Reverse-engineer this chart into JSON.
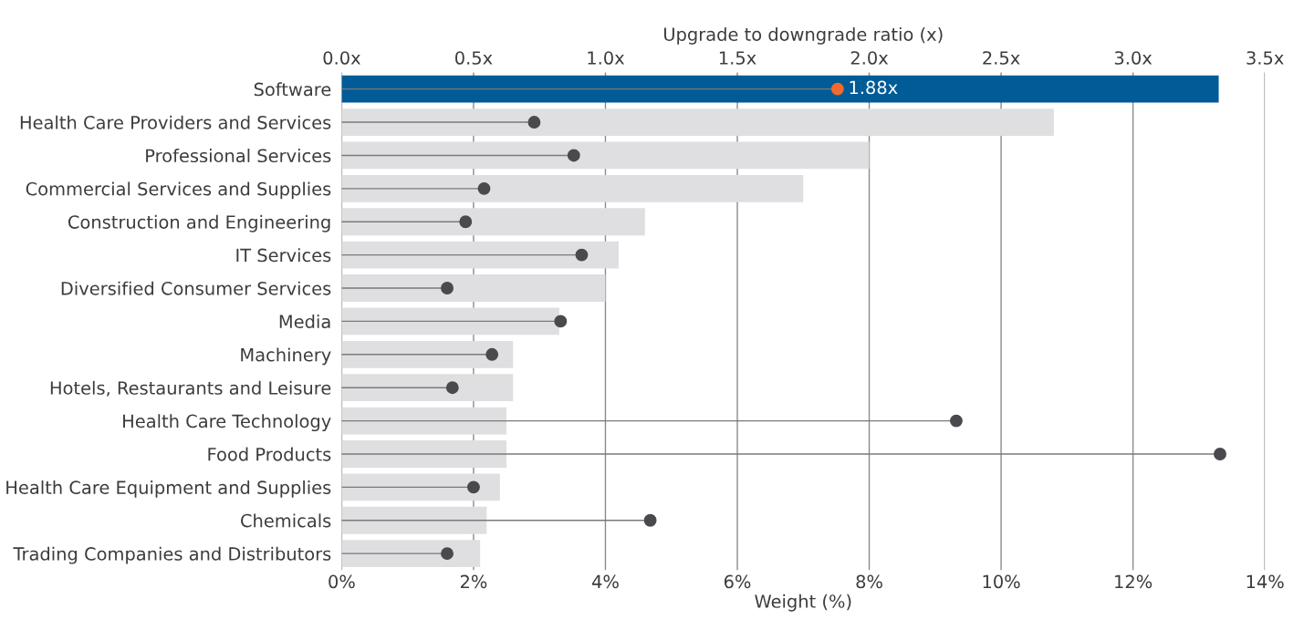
{
  "chart_data": {
    "type": "bar",
    "orientation": "horizontal",
    "categories": [
      "Software",
      "Health Care Providers and Services",
      "Professional Services",
      "Commercial Services and Supplies",
      "Construction and Engineering",
      "IT Services",
      "Diversified Consumer Services",
      "Media",
      "Machinery",
      "Hotels, Restaurants and Leisure",
      "Health Care Technology",
      "Food Products",
      "Health Care Equipment and Supplies",
      "Chemicals",
      "Trading Companies and Distributors"
    ],
    "series": [
      {
        "type": "bar",
        "colors": [
          "#005b96",
          "#dfdfe1",
          "#dfdfe1",
          "#dfdfe1",
          "#dfdfe1",
          "#dfdfe1",
          "#dfdfe1",
          "#dfdfe1",
          "#dfdfe1",
          "#dfdfe1",
          "#dfdfe1",
          "#dfdfe1",
          "#dfdfe1",
          "#dfdfe1",
          "#dfdfe1"
        ],
        "values": [
          13.3,
          10.8,
          8.0,
          7.0,
          4.6,
          4.2,
          4.0,
          3.3,
          2.6,
          2.6,
          2.5,
          2.5,
          2.4,
          2.2,
          2.1
        ]
      },
      {
        "type": "lollipop",
        "axis": "x2",
        "colors": [
          "#f26a2e",
          "#4a4a4e",
          "#4a4a4e",
          "#4a4a4e",
          "#4a4a4e",
          "#4a4a4e",
          "#4a4a4e",
          "#4a4a4e",
          "#4a4a4e",
          "#4a4a4e",
          "#4a4a4e",
          "#4a4a4e",
          "#4a4a4e",
          "#4a4a4e",
          "#4a4a4e"
        ],
        "values": [
          1.88,
          0.73,
          0.88,
          0.54,
          0.47,
          0.91,
          0.4,
          0.83,
          0.57,
          0.42,
          2.33,
          3.33,
          0.5,
          1.17,
          0.4
        ],
        "value_labels": [
          "1.88x",
          null,
          null,
          null,
          null,
          null,
          null,
          null,
          null,
          null,
          null,
          null,
          null,
          null,
          null
        ]
      }
    ],
    "xlabel": "Weight (%)",
    "x2label": "Upgrade to downgrade ratio (x)",
    "xlim": [
      0,
      14
    ],
    "xticks": [
      {
        "value": 0,
        "label": "0%"
      },
      {
        "value": 2,
        "label": "2%"
      },
      {
        "value": 4,
        "label": "4%"
      },
      {
        "value": 6,
        "label": "6%"
      },
      {
        "value": 8,
        "label": "8%"
      },
      {
        "value": 10,
        "label": "10%"
      },
      {
        "value": 12,
        "label": "12%"
      },
      {
        "value": 14,
        "label": "14%"
      }
    ],
    "x2lim": [
      0,
      3.5
    ],
    "x2ticks": [
      {
        "value": 0,
        "label": "0.0x"
      },
      {
        "value": 0.5,
        "label": "0.5x"
      },
      {
        "value": 1.0,
        "label": "1.0x"
      },
      {
        "value": 1.5,
        "label": "1.5x"
      },
      {
        "value": 2.0,
        "label": "2.0x"
      },
      {
        "value": 2.5,
        "label": "2.5x"
      },
      {
        "value": 3.0,
        "label": "3.0x"
      },
      {
        "value": 3.5,
        "label": "3.5x"
      }
    ],
    "grid": "x",
    "marker": "circle"
  }
}
